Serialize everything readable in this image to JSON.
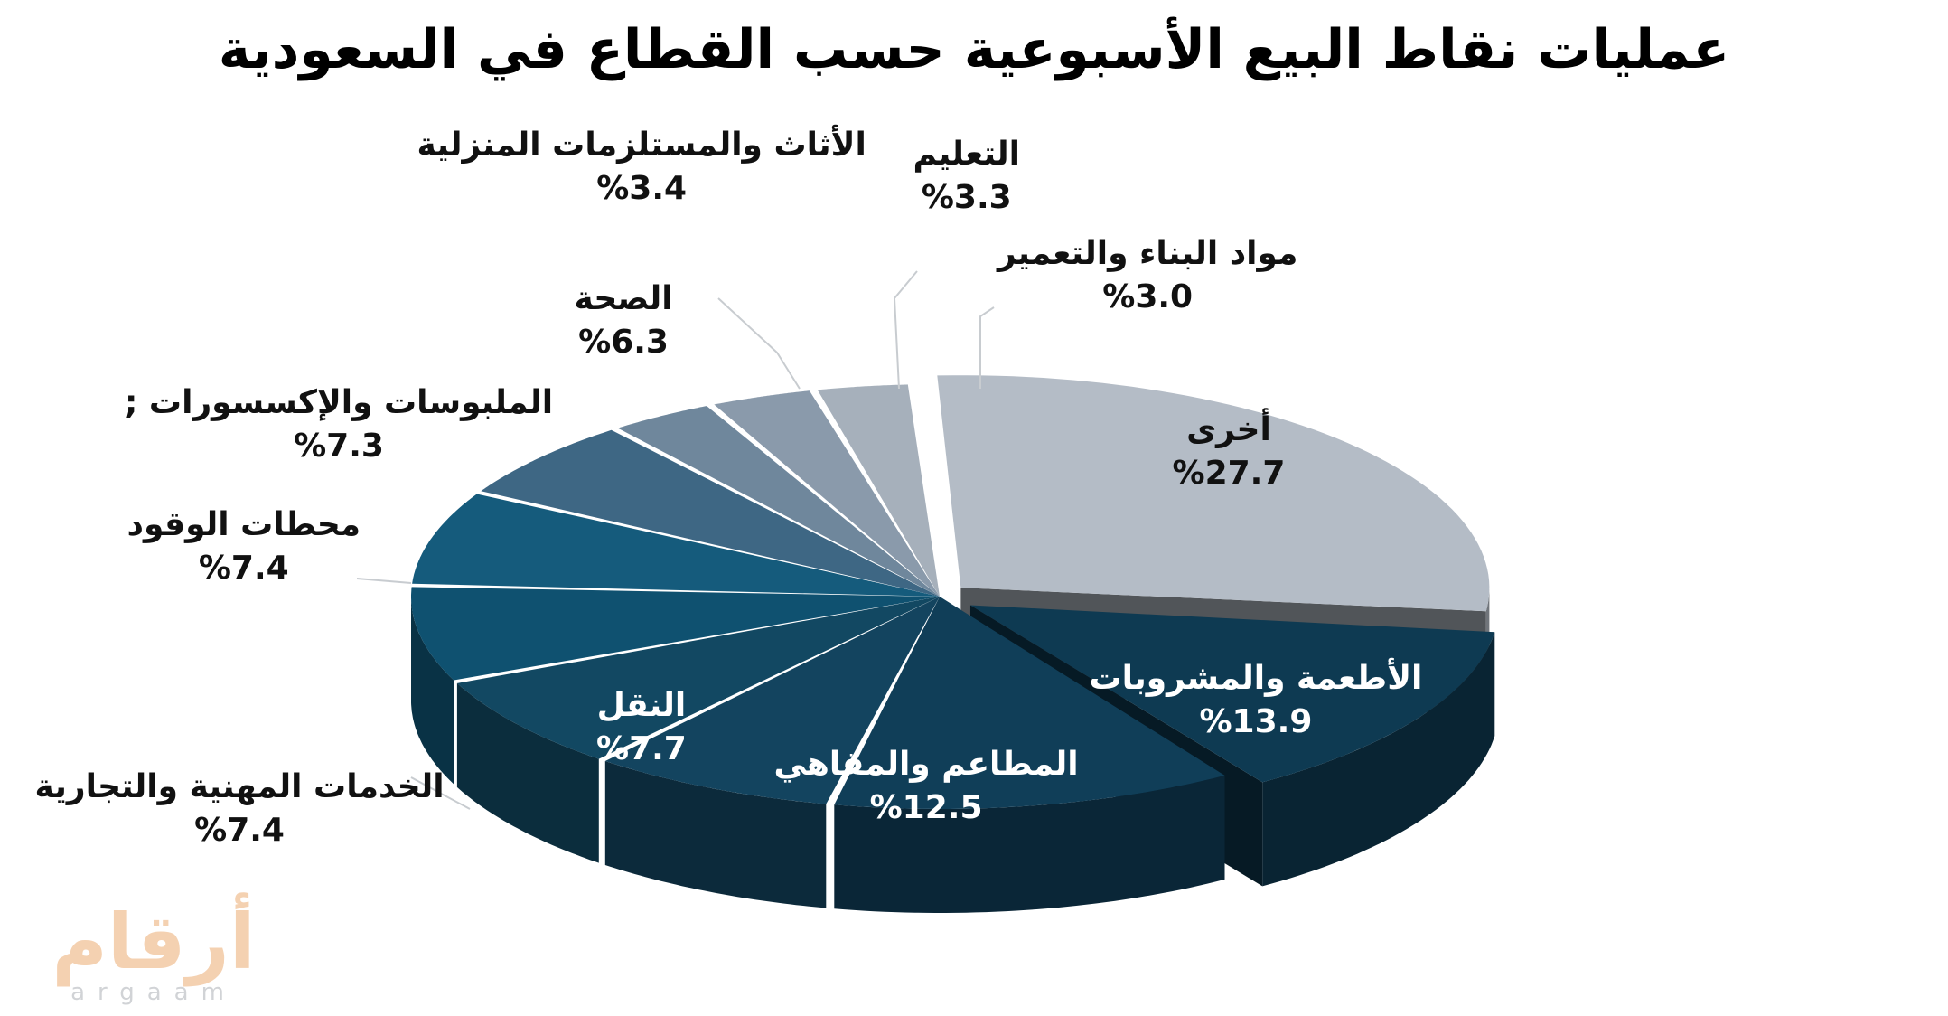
{
  "chart_data": {
    "type": "pie",
    "title": "عمليات نقاط البيع الأسبوعية حسب القطاع في السعودية",
    "slices": [
      {
        "label": "أخرى",
        "value": 27.7,
        "value_label": "%27.7",
        "color": "#b4bcc6"
      },
      {
        "label": "الأطعمة والمشروبات",
        "value": 13.9,
        "value_label": "%13.9",
        "color": "#0e3a52"
      },
      {
        "label": "المطاعم والمقاهي",
        "value": 12.5,
        "value_label": "%12.5",
        "color": "#103e58"
      },
      {
        "label": "النقل",
        "value": 7.7,
        "value_label": "%7.7",
        "color": "#13445f"
      },
      {
        "label": "الخدمات المهنية والتجارية",
        "value": 7.4,
        "value_label": "%7.4",
        "color": "#124862"
      },
      {
        "label": "محطات الوقود",
        "value": 7.4,
        "value_label": "%7.4",
        "color": "#0f5170"
      },
      {
        "label": "الملبوسات والإكسسورات ;",
        "value": 7.3,
        "value_label": "%7.3",
        "color": "#155b7c"
      },
      {
        "label": "الصحة",
        "value": 6.3,
        "value_label": "%6.3",
        "color": "#3e6784"
      },
      {
        "label": "الأثاث والمستلزمات المنزلية",
        "value": 3.4,
        "value_label": "%3.4",
        "color": "#6f879c"
      },
      {
        "label": "التعليم",
        "value": 3.3,
        "value_label": "%3.3",
        "color": "#8a9aab"
      },
      {
        "label": "مواد البناء والتعمير",
        "value": 3.0,
        "value_label": "%3.0",
        "color": "#a6b0bb"
      }
    ]
  },
  "watermark": {
    "arabic": "أرقام",
    "latin": "argaam"
  }
}
